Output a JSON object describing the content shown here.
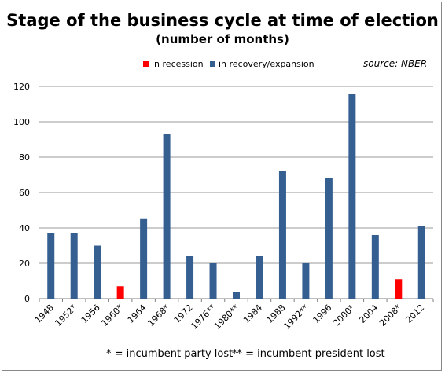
{
  "colors": {
    "recession": "#ff0000",
    "expansion": "#365f91",
    "grid": "#999999"
  },
  "legend": {
    "recession_label": "in recession",
    "expansion_label": "in recovery/expansion"
  },
  "source": "source: NBER",
  "footnotes": {
    "single": "* = incumbent party lost",
    "double": "** = incumbent president lost"
  },
  "chart_data": {
    "type": "bar",
    "title": "Stage of the business cycle at time of election",
    "subtitle": "(number of months)",
    "xlabel": "",
    "ylabel": "",
    "ylim": [
      0,
      120
    ],
    "yticks": [
      0,
      20,
      40,
      60,
      80,
      100,
      120
    ],
    "grid": true,
    "legend_position": "top",
    "categories": [
      "1948",
      "1952*",
      "1956",
      "1960*",
      "1964",
      "1968*",
      "1972",
      "1976**",
      "1980**",
      "1984",
      "1988",
      "1992**",
      "1996",
      "2000*",
      "2004",
      "2008*",
      "2012"
    ],
    "values": [
      37,
      37,
      30,
      7,
      45,
      93,
      24,
      20,
      4,
      24,
      72,
      20,
      68,
      116,
      36,
      11,
      41
    ],
    "status": [
      "expansion",
      "expansion",
      "expansion",
      "recession",
      "expansion",
      "expansion",
      "expansion",
      "expansion",
      "expansion",
      "expansion",
      "expansion",
      "expansion",
      "expansion",
      "expansion",
      "expansion",
      "recession",
      "expansion"
    ]
  }
}
